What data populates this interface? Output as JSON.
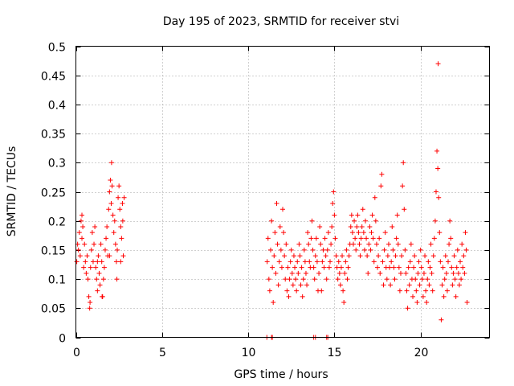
{
  "chart_data": {
    "type": "scatter",
    "title": "Day 195 of 2023, SRMTID for receiver stvi",
    "xlabel": "GPS time / hours",
    "ylabel": "SRMTID / TECUs",
    "xlim": [
      0,
      24
    ],
    "ylim": [
      0,
      0.5
    ],
    "xticks": [
      0,
      5,
      10,
      15,
      20
    ],
    "xtick_labels": [
      "0",
      "5",
      "10",
      "15",
      "20"
    ],
    "yticks": [
      0,
      0.05,
      0.1,
      0.15,
      0.2,
      0.25,
      0.3,
      0.35,
      0.4,
      0.45,
      0.5
    ],
    "ytick_labels": [
      "0",
      "0.05",
      "0.1",
      "0.15",
      "0.2",
      "0.25",
      "0.3",
      "0.35",
      "0.4",
      "0.45",
      "0.5"
    ],
    "grid": true,
    "marker": "+",
    "color": "#ff0000",
    "series": [
      {
        "name": "SRMTID",
        "points": [
          [
            0.05,
            0.13
          ],
          [
            0.1,
            0.16
          ],
          [
            0.15,
            0.15
          ],
          [
            0.2,
            0.18
          ],
          [
            0.25,
            0.14
          ],
          [
            0.3,
            0.2
          ],
          [
            0.35,
            0.17
          ],
          [
            0.4,
            0.19
          ],
          [
            0.45,
            0.12
          ],
          [
            0.5,
            0.16
          ],
          [
            0.55,
            0.13
          ],
          [
            0.6,
            0.11
          ],
          [
            0.65,
            0.14
          ],
          [
            0.7,
            0.1
          ],
          [
            0.75,
            0.07
          ],
          [
            0.8,
            0.05
          ],
          [
            0.85,
            0.12
          ],
          [
            0.9,
            0.15
          ],
          [
            0.95,
            0.18
          ],
          [
            1.0,
            0.13
          ],
          [
            1.05,
            0.16
          ],
          [
            1.1,
            0.19
          ],
          [
            1.15,
            0.12
          ],
          [
            1.2,
            0.1
          ],
          [
            1.25,
            0.08
          ],
          [
            1.3,
            0.14
          ],
          [
            1.35,
            0.11
          ],
          [
            1.4,
            0.09
          ],
          [
            1.45,
            0.16
          ],
          [
            1.5,
            0.13
          ],
          [
            1.55,
            0.07
          ],
          [
            1.6,
            0.1
          ],
          [
            1.65,
            0.12
          ],
          [
            1.7,
            0.15
          ],
          [
            1.75,
            0.17
          ],
          [
            1.8,
            0.19
          ],
          [
            1.85,
            0.14
          ],
          [
            1.9,
            0.22
          ],
          [
            1.95,
            0.25
          ],
          [
            2.0,
            0.27
          ],
          [
            2.05,
            0.23
          ],
          [
            2.1,
            0.26
          ],
          [
            2.15,
            0.21
          ],
          [
            2.2,
            0.18
          ],
          [
            2.25,
            0.2
          ],
          [
            2.3,
            0.16
          ],
          [
            2.35,
            0.13
          ],
          [
            2.4,
            0.15
          ],
          [
            2.45,
            0.24
          ],
          [
            2.5,
            0.26
          ],
          [
            2.55,
            0.22
          ],
          [
            2.6,
            0.19
          ],
          [
            2.65,
            0.17
          ],
          [
            2.7,
            0.23
          ],
          [
            2.75,
            0.14
          ],
          [
            2.8,
            0.24
          ],
          [
            2.07,
            0.3
          ],
          [
            2.38,
            0.1
          ],
          [
            0.82,
            0.06
          ],
          [
            1.52,
            0.07
          ],
          [
            2.6,
            0.13
          ],
          [
            2.72,
            0.2
          ],
          [
            1.95,
            0.14
          ],
          [
            0.35,
            0.21
          ],
          [
            1.25,
            0.13
          ],
          [
            11.1,
            0.13
          ],
          [
            11.15,
            0.17
          ],
          [
            11.2,
            0.1
          ],
          [
            11.25,
            0.08
          ],
          [
            11.3,
            0.15
          ],
          [
            11.35,
            0.2
          ],
          [
            11.4,
            0.12
          ],
          [
            11.45,
            0.06
          ],
          [
            11.5,
            0.14
          ],
          [
            11.55,
            0.18
          ],
          [
            11.6,
            0.11
          ],
          [
            11.65,
            0.23
          ],
          [
            11.7,
            0.16
          ],
          [
            11.75,
            0.09
          ],
          [
            11.8,
            0.13
          ],
          [
            11.85,
            0.19
          ],
          [
            11.9,
            0.15
          ],
          [
            11.95,
            0.12
          ],
          [
            12.0,
            0.22
          ],
          [
            12.05,
            0.18
          ],
          [
            12.1,
            0.14
          ],
          [
            12.15,
            0.1
          ],
          [
            12.2,
            0.16
          ],
          [
            12.25,
            0.08
          ],
          [
            12.3,
            0.12
          ],
          [
            12.35,
            0.07
          ],
          [
            12.4,
            0.1
          ],
          [
            12.45,
            0.13
          ],
          [
            12.5,
            0.15
          ],
          [
            12.55,
            0.11
          ],
          [
            12.6,
            0.09
          ],
          [
            12.65,
            0.14
          ],
          [
            12.7,
            0.12
          ],
          [
            12.75,
            0.1
          ],
          [
            12.8,
            0.08
          ],
          [
            12.85,
            0.13
          ],
          [
            12.9,
            0.11
          ],
          [
            12.95,
            0.16
          ],
          [
            13.0,
            0.14
          ],
          [
            13.05,
            0.09
          ],
          [
            13.1,
            0.12
          ],
          [
            13.15,
            0.07
          ],
          [
            13.2,
            0.1
          ],
          [
            13.25,
            0.15
          ],
          [
            13.3,
            0.13
          ],
          [
            13.35,
            0.11
          ],
          [
            13.4,
            0.09
          ],
          [
            13.45,
            0.18
          ],
          [
            13.5,
            0.16
          ],
          [
            13.55,
            0.13
          ],
          [
            13.6,
            0.12
          ],
          [
            13.65,
            0.17
          ],
          [
            13.7,
            0.2
          ],
          [
            13.75,
            0.15
          ],
          [
            13.8,
            0.12
          ],
          [
            13.85,
            0.1
          ],
          [
            13.9,
            0.14
          ],
          [
            13.95,
            0.17
          ],
          [
            14.0,
            0.13
          ],
          [
            14.05,
            0.08
          ],
          [
            14.1,
            0.11
          ],
          [
            14.15,
            0.19
          ],
          [
            14.2,
            0.16
          ],
          [
            14.25,
            0.08
          ],
          [
            14.3,
            0.13
          ],
          [
            14.35,
            0.15
          ],
          [
            14.4,
            0.12
          ],
          [
            14.45,
            0.17
          ],
          [
            14.5,
            0.14
          ],
          [
            14.55,
            0.1
          ],
          [
            14.6,
            0.15
          ],
          [
            14.65,
            0.18
          ],
          [
            14.7,
            0.12
          ],
          [
            14.75,
            0.13
          ],
          [
            14.8,
            0.16
          ],
          [
            14.85,
            0.19
          ],
          [
            14.9,
            0.23
          ],
          [
            14.95,
            0.25
          ],
          [
            15.0,
            0.21
          ],
          [
            15.05,
            0.17
          ],
          [
            15.1,
            0.14
          ],
          [
            15.15,
            0.12
          ],
          [
            15.2,
            0.1
          ],
          [
            15.25,
            0.13
          ],
          [
            15.3,
            0.11
          ],
          [
            15.35,
            0.09
          ],
          [
            15.4,
            0.12
          ],
          [
            15.45,
            0.14
          ],
          [
            15.5,
            0.08
          ],
          [
            15.55,
            0.06
          ],
          [
            15.6,
            0.11
          ],
          [
            15.65,
            0.13
          ],
          [
            15.7,
            0.15
          ],
          [
            15.75,
            0.1
          ],
          [
            15.8,
            0.12
          ],
          [
            15.85,
            0.14
          ],
          [
            15.9,
            0.16
          ],
          [
            15.95,
            0.19
          ],
          [
            16.0,
            0.21
          ],
          [
            16.05,
            0.18
          ],
          [
            16.1,
            0.16
          ],
          [
            16.15,
            0.2
          ],
          [
            16.2,
            0.17
          ],
          [
            16.25,
            0.15
          ],
          [
            16.3,
            0.19
          ],
          [
            16.35,
            0.21
          ],
          [
            16.4,
            0.18
          ],
          [
            16.45,
            0.16
          ],
          [
            16.5,
            0.14
          ],
          [
            16.55,
            0.17
          ],
          [
            16.6,
            0.19
          ],
          [
            16.65,
            0.22
          ],
          [
            16.7,
            0.18
          ],
          [
            16.75,
            0.15
          ],
          [
            16.8,
            0.2
          ],
          [
            16.85,
            0.17
          ],
          [
            16.9,
            0.14
          ],
          [
            16.95,
            0.11
          ],
          [
            17.0,
            0.16
          ],
          [
            17.05,
            0.19
          ],
          [
            17.1,
            0.15
          ],
          [
            17.15,
            0.18
          ],
          [
            17.2,
            0.21
          ],
          [
            17.25,
            0.17
          ],
          [
            17.3,
            0.13
          ],
          [
            17.35,
            0.24
          ],
          [
            17.4,
            0.2
          ],
          [
            17.45,
            0.16
          ],
          [
            17.5,
            0.12
          ],
          [
            17.55,
            0.14
          ],
          [
            17.6,
            0.17
          ],
          [
            17.65,
            0.11
          ],
          [
            17.7,
            0.26
          ],
          [
            17.75,
            0.28
          ],
          [
            17.8,
            0.13
          ],
          [
            17.85,
            0.09
          ],
          [
            17.9,
            0.15
          ],
          [
            17.95,
            0.18
          ],
          [
            18.0,
            0.12
          ],
          [
            18.05,
            0.1
          ],
          [
            18.1,
            0.14
          ],
          [
            18.15,
            0.16
          ],
          [
            18.2,
            0.12
          ],
          [
            18.25,
            0.09
          ],
          [
            18.3,
            0.13
          ],
          [
            18.35,
            0.19
          ],
          [
            18.4,
            0.15
          ],
          [
            18.45,
            0.12
          ],
          [
            18.5,
            0.1
          ],
          [
            18.55,
            0.14
          ],
          [
            18.6,
            0.17
          ],
          [
            18.65,
            0.21
          ],
          [
            18.7,
            0.16
          ],
          [
            18.75,
            0.12
          ],
          [
            18.8,
            0.08
          ],
          [
            18.85,
            0.11
          ],
          [
            18.9,
            0.14
          ],
          [
            18.95,
            0.26
          ],
          [
            19.0,
            0.3
          ],
          [
            19.05,
            0.22
          ],
          [
            19.1,
            0.15
          ],
          [
            19.15,
            0.11
          ],
          [
            19.2,
            0.08
          ],
          [
            19.25,
            0.05
          ],
          [
            19.3,
            0.12
          ],
          [
            19.35,
            0.09
          ],
          [
            19.4,
            0.13
          ],
          [
            19.45,
            0.16
          ],
          [
            19.5,
            0.1
          ],
          [
            19.55,
            0.07
          ],
          [
            19.6,
            0.12
          ],
          [
            19.65,
            0.14
          ],
          [
            19.7,
            0.1
          ],
          [
            19.75,
            0.08
          ],
          [
            19.8,
            0.06
          ],
          [
            19.85,
            0.11
          ],
          [
            19.9,
            0.13
          ],
          [
            19.95,
            0.09
          ],
          [
            20.0,
            0.15
          ],
          [
            20.05,
            0.12
          ],
          [
            20.1,
            0.1
          ],
          [
            20.15,
            0.07
          ],
          [
            20.2,
            0.11
          ],
          [
            20.25,
            0.14
          ],
          [
            20.3,
            0.08
          ],
          [
            20.35,
            0.06
          ],
          [
            20.4,
            0.1
          ],
          [
            20.45,
            0.13
          ],
          [
            20.5,
            0.09
          ],
          [
            20.55,
            0.12
          ],
          [
            20.6,
            0.16
          ],
          [
            20.65,
            0.11
          ],
          [
            20.7,
            0.08
          ],
          [
            20.75,
            0.14
          ],
          [
            20.8,
            0.17
          ],
          [
            20.85,
            0.2
          ],
          [
            20.9,
            0.25
          ],
          [
            20.95,
            0.32
          ],
          [
            21.0,
            0.29
          ],
          [
            21.02,
            0.47
          ],
          [
            21.05,
            0.24
          ],
          [
            21.1,
            0.18
          ],
          [
            21.15,
            0.13
          ],
          [
            21.2,
            0.03
          ],
          [
            21.25,
            0.09
          ],
          [
            21.3,
            0.12
          ],
          [
            21.35,
            0.07
          ],
          [
            21.4,
            0.1
          ],
          [
            21.45,
            0.14
          ],
          [
            21.5,
            0.11
          ],
          [
            21.55,
            0.08
          ],
          [
            21.6,
            0.13
          ],
          [
            21.65,
            0.16
          ],
          [
            21.7,
            0.2
          ],
          [
            21.75,
            0.17
          ],
          [
            21.8,
            0.12
          ],
          [
            21.85,
            0.09
          ],
          [
            21.9,
            0.11
          ],
          [
            21.95,
            0.14
          ],
          [
            22.0,
            0.1
          ],
          [
            22.05,
            0.07
          ],
          [
            22.1,
            0.12
          ],
          [
            22.15,
            0.15
          ],
          [
            22.2,
            0.11
          ],
          [
            22.25,
            0.09
          ],
          [
            22.3,
            0.13
          ],
          [
            22.35,
            0.1
          ],
          [
            22.4,
            0.16
          ],
          [
            22.45,
            0.12
          ],
          [
            22.5,
            0.14
          ],
          [
            22.55,
            0.11
          ],
          [
            22.6,
            0.18
          ],
          [
            22.65,
            0.15
          ],
          [
            22.7,
            0.06
          ],
          [
            11.35,
            0
          ],
          [
            11.4,
            0
          ],
          [
            13.8,
            0
          ],
          [
            13.9,
            0
          ],
          [
            14.55,
            0
          ],
          [
            14.62,
            0
          ],
          [
            11.08,
            0
          ]
        ]
      }
    ]
  }
}
